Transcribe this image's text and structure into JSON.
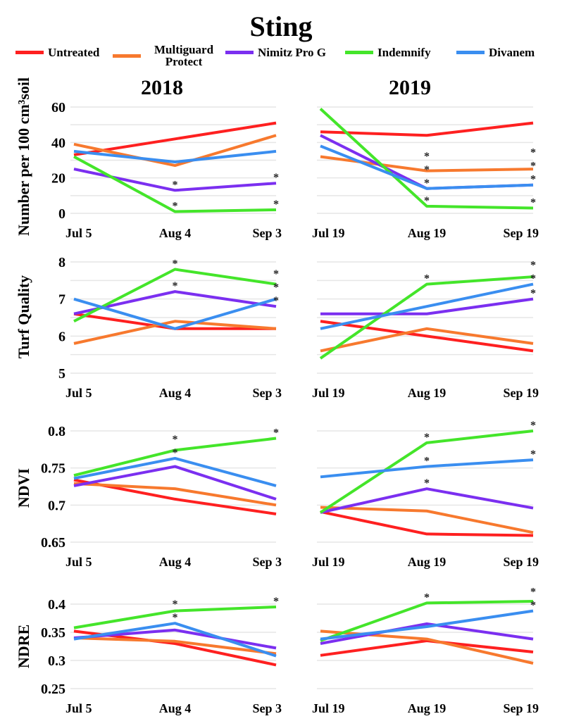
{
  "title": "Sting",
  "legend": [
    {
      "name": "Untreated",
      "color": "#fe2020"
    },
    {
      "name": "Multiguard Protect",
      "color": "#f7792e"
    },
    {
      "name": "Nimitz Pro G",
      "color": "#7b2ff0"
    },
    {
      "name": "Indemnify",
      "color": "#44e52a"
    },
    {
      "name": "Divanem",
      "color": "#3a8ef0"
    }
  ],
  "years": [
    "2018",
    "2019"
  ],
  "chart_data": [
    {
      "type": "line",
      "panel": "nematodes-2018",
      "ylabel": "Number per 100 cm³soil",
      "ylim": [
        0,
        60
      ],
      "yticks": [
        "0",
        "20",
        "40",
        "60"
      ],
      "categories": [
        "Jul 5",
        "Aug 4",
        "Sep 3"
      ],
      "grid": true,
      "series": [
        {
          "name": "Untreated",
          "values": [
            33,
            42,
            51
          ],
          "sig": [
            0,
            0,
            0
          ]
        },
        {
          "name": "Multiguard Protect",
          "values": [
            39,
            27,
            44
          ],
          "sig": [
            0,
            0,
            0
          ]
        },
        {
          "name": "Nimitz Pro G",
          "values": [
            25,
            13,
            17
          ],
          "sig": [
            0,
            1,
            1
          ]
        },
        {
          "name": "Indemnify",
          "values": [
            32,
            1,
            2
          ],
          "sig": [
            0,
            1,
            1
          ]
        },
        {
          "name": "Divanem",
          "values": [
            35,
            29,
            35
          ],
          "sig": [
            0,
            0,
            0
          ]
        }
      ]
    },
    {
      "type": "line",
      "panel": "nematodes-2019",
      "ylim": [
        0,
        60
      ],
      "categories": [
        "Jul 19",
        "Aug 19",
        "Sep 19"
      ],
      "grid": true,
      "series": [
        {
          "name": "Untreated",
          "values": [
            46,
            44,
            51
          ],
          "sig": [
            0,
            0,
            0
          ]
        },
        {
          "name": "Multiguard Protect",
          "values": [
            32,
            24,
            25
          ],
          "sig": [
            0,
            1,
            1
          ]
        },
        {
          "name": "Nimitz Pro G",
          "values": [
            44,
            14,
            16
          ],
          "sig": [
            0,
            1,
            1
          ]
        },
        {
          "name": "Indemnify",
          "values": [
            59,
            4,
            3
          ],
          "sig": [
            0,
            1,
            1
          ]
        },
        {
          "name": "Divanem",
          "values": [
            38,
            14,
            16
          ],
          "sig": [
            0,
            1,
            1
          ]
        }
      ]
    },
    {
      "type": "line",
      "panel": "turf-2018",
      "ylabel": "Turf Quality",
      "ylim": [
        5,
        8
      ],
      "yticks": [
        "5",
        "6",
        "7",
        "8"
      ],
      "categories": [
        "Jul 5",
        "Aug 4",
        "Sep 3"
      ],
      "grid": true,
      "series": [
        {
          "name": "Untreated",
          "values": [
            6.6,
            6.2,
            6.2
          ],
          "sig": [
            0,
            0,
            0
          ]
        },
        {
          "name": "Multiguard Protect",
          "values": [
            5.8,
            6.4,
            6.2
          ],
          "sig": [
            0,
            0,
            0
          ]
        },
        {
          "name": "Nimitz Pro G",
          "values": [
            6.6,
            7.2,
            6.8
          ],
          "sig": [
            0,
            1,
            1
          ]
        },
        {
          "name": "Indemnify",
          "values": [
            6.4,
            7.8,
            7.4
          ],
          "sig": [
            0,
            1,
            1
          ]
        },
        {
          "name": "Divanem",
          "values": [
            7.0,
            6.2,
            7.0
          ],
          "sig": [
            0,
            0,
            1
          ]
        }
      ]
    },
    {
      "type": "line",
      "panel": "turf-2019",
      "ylim": [
        5,
        8
      ],
      "categories": [
        "Jul 19",
        "Aug 19",
        "Sep 19"
      ],
      "grid": true,
      "series": [
        {
          "name": "Untreated",
          "values": [
            6.4,
            6.0,
            5.6
          ],
          "sig": [
            0,
            0,
            0
          ]
        },
        {
          "name": "Multiguard Protect",
          "values": [
            5.6,
            6.2,
            5.8
          ],
          "sig": [
            0,
            0,
            0
          ]
        },
        {
          "name": "Nimitz Pro G",
          "values": [
            6.6,
            6.6,
            7.0
          ],
          "sig": [
            0,
            0,
            1
          ]
        },
        {
          "name": "Indemnify",
          "values": [
            5.4,
            7.4,
            7.6
          ],
          "sig": [
            0,
            1,
            1
          ]
        },
        {
          "name": "Divanem",
          "values": [
            6.2,
            6.8,
            7.4
          ],
          "sig": [
            0,
            0,
            1
          ]
        }
      ]
    },
    {
      "type": "line",
      "panel": "ndvi-2018",
      "ylabel": "NDVI",
      "ylim": [
        0.65,
        0.8
      ],
      "yticks": [
        "0.65",
        "0.7",
        "0.75",
        "0.8"
      ],
      "categories": [
        "Jul 5",
        "Aug 4",
        "Sep 3"
      ],
      "grid": true,
      "series": [
        {
          "name": "Untreated",
          "values": [
            0.734,
            0.708,
            0.688
          ],
          "sig": [
            0,
            0,
            0
          ]
        },
        {
          "name": "Multiguard Protect",
          "values": [
            0.729,
            0.722,
            0.7
          ],
          "sig": [
            0,
            0,
            0
          ]
        },
        {
          "name": "Nimitz Pro G",
          "values": [
            0.726,
            0.752,
            0.708
          ],
          "sig": [
            0,
            0,
            0
          ]
        },
        {
          "name": "Indemnify",
          "values": [
            0.74,
            0.774,
            0.79
          ],
          "sig": [
            0,
            1,
            1
          ]
        },
        {
          "name": "Divanem",
          "values": [
            0.736,
            0.763,
            0.726
          ],
          "sig": [
            0,
            1,
            0
          ]
        }
      ]
    },
    {
      "type": "line",
      "panel": "ndvi-2019",
      "ylim": [
        0.65,
        0.8
      ],
      "categories": [
        "Jul 19",
        "Aug 19",
        "Sep 19"
      ],
      "grid": true,
      "series": [
        {
          "name": "Untreated",
          "values": [
            0.691,
            0.661,
            0.659
          ],
          "sig": [
            0,
            0,
            0
          ]
        },
        {
          "name": "Multiguard Protect",
          "values": [
            0.697,
            0.692,
            0.663
          ],
          "sig": [
            0,
            0,
            0
          ]
        },
        {
          "name": "Nimitz Pro G",
          "values": [
            0.69,
            0.722,
            0.696
          ],
          "sig": [
            0,
            1,
            0
          ]
        },
        {
          "name": "Indemnify",
          "values": [
            0.69,
            0.784,
            0.8
          ],
          "sig": [
            0,
            1,
            1
          ]
        },
        {
          "name": "Divanem",
          "values": [
            0.738,
            0.752,
            0.761
          ],
          "sig": [
            0,
            1,
            1
          ]
        }
      ]
    },
    {
      "type": "line",
      "panel": "ndre-2018",
      "ylabel": "NDRE",
      "ylim": [
        0.25,
        0.4
      ],
      "yticks": [
        "0.25",
        "0.3",
        "0.35",
        "0.4"
      ],
      "categories": [
        "Jul 5",
        "Aug 4",
        "Sep 3"
      ],
      "grid": true,
      "series": [
        {
          "name": "Untreated",
          "values": [
            0.352,
            0.33,
            0.292
          ],
          "sig": [
            0,
            0,
            0
          ]
        },
        {
          "name": "Multiguard Protect",
          "values": [
            0.34,
            0.334,
            0.312
          ],
          "sig": [
            0,
            0,
            0
          ]
        },
        {
          "name": "Nimitz Pro G",
          "values": [
            0.34,
            0.354,
            0.322
          ],
          "sig": [
            0,
            0,
            0
          ]
        },
        {
          "name": "Indemnify",
          "values": [
            0.358,
            0.388,
            0.395
          ],
          "sig": [
            0,
            1,
            1
          ]
        },
        {
          "name": "Divanem",
          "values": [
            0.338,
            0.366,
            0.308
          ],
          "sig": [
            0,
            1,
            0
          ]
        }
      ]
    },
    {
      "type": "line",
      "panel": "ndre-2019",
      "ylim": [
        0.25,
        0.4
      ],
      "categories": [
        "Jul 19",
        "Aug 19",
        "Sep 19"
      ],
      "grid": true,
      "series": [
        {
          "name": "Untreated",
          "values": [
            0.309,
            0.335,
            0.315
          ],
          "sig": [
            0,
            0,
            0
          ]
        },
        {
          "name": "Multiguard Protect",
          "values": [
            0.352,
            0.338,
            0.295
          ],
          "sig": [
            0,
            0,
            0
          ]
        },
        {
          "name": "Nimitz Pro G",
          "values": [
            0.33,
            0.365,
            0.338
          ],
          "sig": [
            0,
            0,
            0
          ]
        },
        {
          "name": "Indemnify",
          "values": [
            0.335,
            0.402,
            0.405
          ],
          "sig": [
            0,
            1,
            1
          ]
        },
        {
          "name": "Divanem",
          "values": [
            0.338,
            0.36,
            0.388
          ],
          "sig": [
            0,
            0,
            1
          ]
        }
      ]
    }
  ],
  "significance_marker": "*"
}
